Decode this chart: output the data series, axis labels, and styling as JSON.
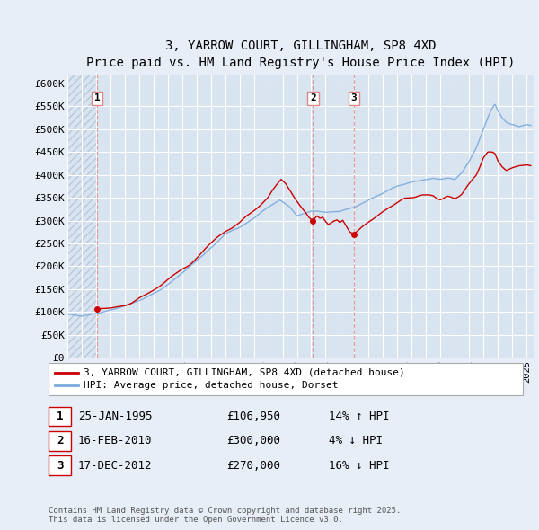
{
  "title": "3, YARROW COURT, GILLINGHAM, SP8 4XD",
  "subtitle": "Price paid vs. HM Land Registry's House Price Index (HPI)",
  "ylim": [
    0,
    620000
  ],
  "yticks": [
    0,
    50000,
    100000,
    150000,
    200000,
    250000,
    300000,
    350000,
    400000,
    450000,
    500000,
    550000,
    600000
  ],
  "ytick_labels": [
    "£0",
    "£50K",
    "£100K",
    "£150K",
    "£200K",
    "£250K",
    "£300K",
    "£350K",
    "£400K",
    "£450K",
    "£500K",
    "£550K",
    "£600K"
  ],
  "background_color": "#e8eef8",
  "plot_bg_color": "#d8e4f0",
  "grid_color": "#ffffff",
  "hatch_color": "#b8c8dc",
  "red_line_color": "#cc0000",
  "blue_line_color": "#7aaadd",
  "dashed_line_color": "#dd8888",
  "transaction_marker_color": "#cc0000",
  "transactions": [
    {
      "date_num": 1995.07,
      "price": 106950,
      "label": "1"
    },
    {
      "date_num": 2010.12,
      "price": 300000,
      "label": "2"
    },
    {
      "date_num": 2012.96,
      "price": 270000,
      "label": "3"
    }
  ],
  "legend_entries": [
    {
      "label": "3, YARROW COURT, GILLINGHAM, SP8 4XD (detached house)",
      "color": "#cc0000"
    },
    {
      "label": "HPI: Average price, detached house, Dorset",
      "color": "#7aaadd"
    }
  ],
  "table_rows": [
    {
      "num": "1",
      "date": "25-JAN-1995",
      "price": "£106,950",
      "hpi": "14% ↑ HPI"
    },
    {
      "num": "2",
      "date": "16-FEB-2010",
      "price": "£300,000",
      "hpi": "4% ↓ HPI"
    },
    {
      "num": "3",
      "date": "17-DEC-2012",
      "price": "£270,000",
      "hpi": "16% ↓ HPI"
    }
  ],
  "footer": "Contains HM Land Registry data © Crown copyright and database right 2025.\nThis data is licensed under the Open Government Licence v3.0.",
  "xlim_start": 1993.0,
  "xlim_end": 2025.5,
  "hatch_end": 1995.07,
  "xtick_years": [
    1993,
    1994,
    1995,
    1996,
    1997,
    1998,
    1999,
    2000,
    2001,
    2002,
    2003,
    2004,
    2005,
    2006,
    2007,
    2008,
    2009,
    2010,
    2011,
    2012,
    2013,
    2014,
    2015,
    2016,
    2017,
    2018,
    2019,
    2020,
    2021,
    2022,
    2023,
    2024,
    2025
  ]
}
